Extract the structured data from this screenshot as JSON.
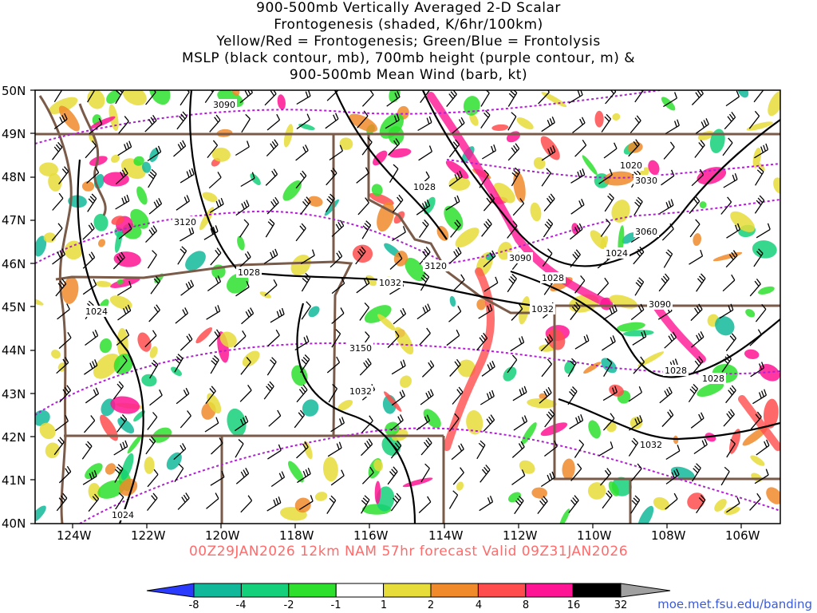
{
  "title": {
    "line1": "900-500mb Vertically Averaged 2-D Scalar",
    "line2": "Frontogenesis (shaded, K/6hr/100km)",
    "line3": "Yellow/Red = Frontogenesis;  Green/Blue = Frontolysis",
    "line4": "MSLP (black contour, mb), 700mb height (purple contour, m) &",
    "line5": "900-500mb Mean Wind (barb, kt)"
  },
  "map": {
    "lat_labels": [
      "50N",
      "49N",
      "48N",
      "47N",
      "46N",
      "45N",
      "44N",
      "43N",
      "42N",
      "41N",
      "40N"
    ],
    "lon_labels": [
      "124W",
      "122W",
      "120W",
      "118W",
      "116W",
      "114W",
      "112W",
      "110W",
      "108W",
      "106W"
    ],
    "lat_range": [
      40,
      50
    ],
    "lon_range": [
      -125,
      -105
    ],
    "mslp_labels": [
      "1028",
      "1032",
      "1024",
      "1020",
      "1028",
      "1032",
      "1028",
      "1032",
      "1028",
      "1024",
      "1032",
      "1024",
      "1028"
    ],
    "height_labels": [
      "3090",
      "3120",
      "3120",
      "3030",
      "3060",
      "3090",
      "3090",
      "3150"
    ],
    "colors": {
      "mslp": "#000000",
      "height": "#b020d0",
      "border": "#7a5a48",
      "barb": "#000000"
    }
  },
  "valid_text": "00Z29JAN2026 12km NAM 57hr forecast Valid 09Z31JAN2026",
  "colorbar": {
    "labels": [
      "-8",
      "-4",
      "-2",
      "-1",
      "1",
      "2",
      "4",
      "8",
      "16",
      "32"
    ],
    "colors": [
      "#2a3bff",
      "#12b89a",
      "#14d07a",
      "#2ee02e",
      "#ffffff",
      "#e6dc3a",
      "#f08a2a",
      "#ff4d4d",
      "#ff1493",
      "#000000",
      "#a0a0a0"
    ]
  },
  "credit": "moe.met.fsu.edu/banding"
}
